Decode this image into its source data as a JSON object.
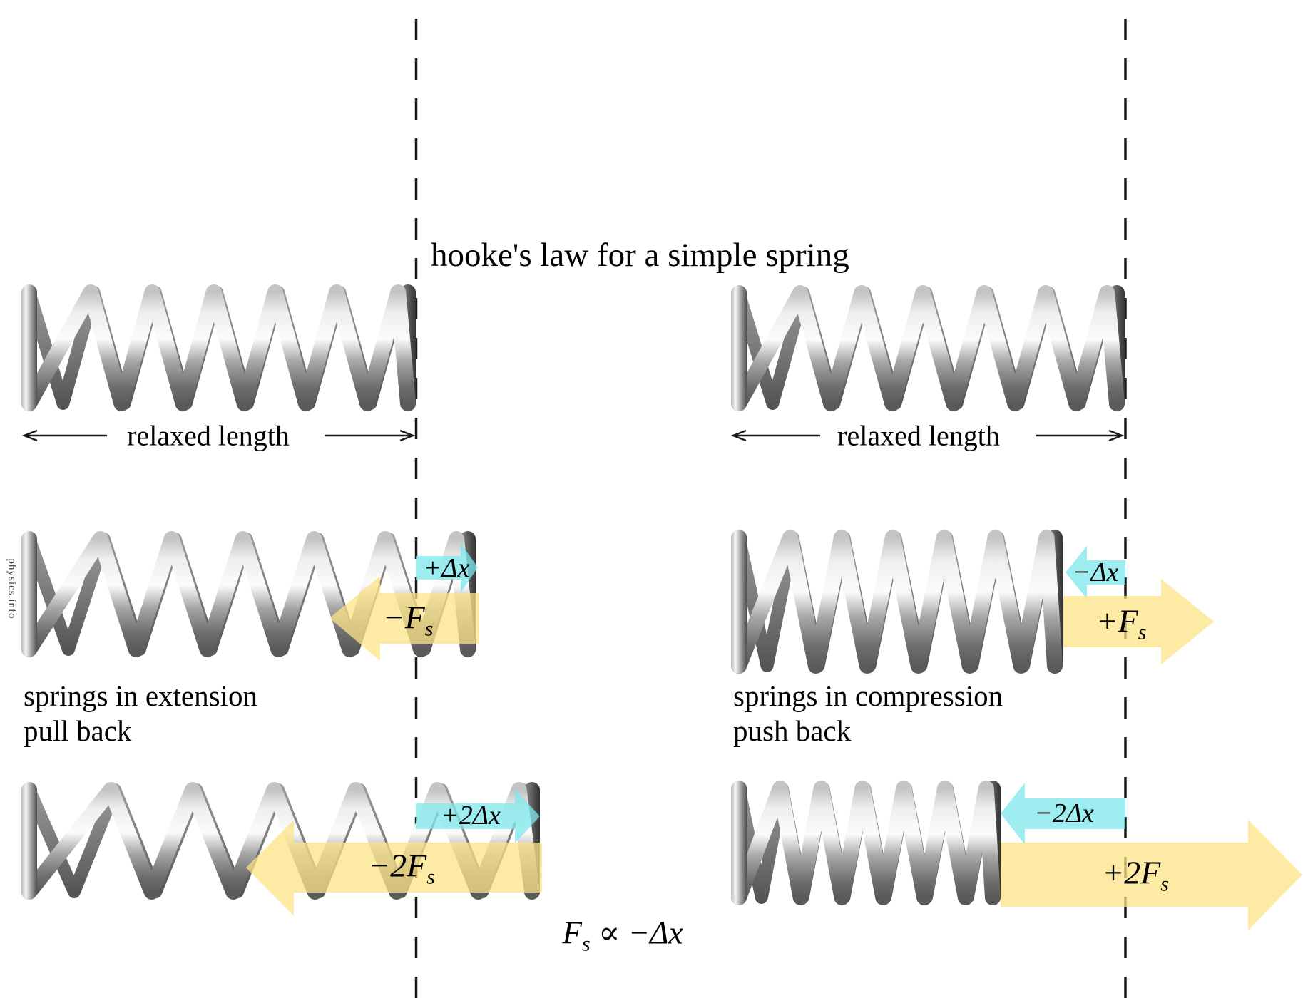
{
  "title": "hooke's law for a simple spring",
  "watermark": "physics.info",
  "colors": {
    "cyan": "#7de8ec",
    "yellow": "#fce487",
    "ink": "#1a1a1a"
  },
  "labels": {
    "relaxed_left": "relaxed length",
    "relaxed_right": "relaxed length",
    "caption_left_line1": "springs in extension",
    "caption_left_line2": "pull back",
    "caption_right_line1": "springs in compression",
    "caption_right_line2": "push back"
  },
  "arrows": {
    "ext1_dx": "+Δx",
    "ext1_f_main": "−F",
    "ext1_f_sub": "s",
    "ext2_dx": "+2Δx",
    "ext2_f_main": "−2F",
    "ext2_f_sub": "s",
    "comp1_dx": "−Δx",
    "comp1_f_main": "+F",
    "comp1_f_sub": "s",
    "comp2_dx": "−2Δx",
    "comp2_f_main": "+2F",
    "comp2_f_sub": "s"
  },
  "equation": {
    "f": "F",
    "sub": "s",
    "rest": " ∝ −Δx"
  }
}
